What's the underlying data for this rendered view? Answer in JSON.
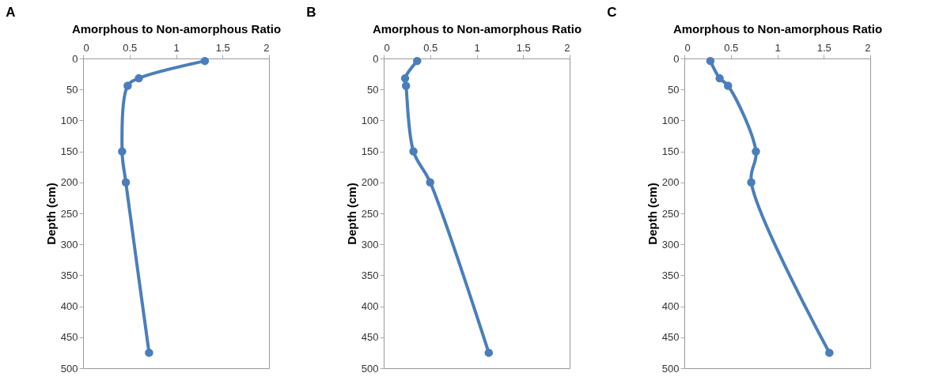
{
  "chart_data": [
    {
      "type": "line",
      "title": "A",
      "xlabel": "Amorphous to Non-amorphous Ratio",
      "ylabel": "Depth (cm)",
      "xlim": [
        0,
        2
      ],
      "xticks": [
        0,
        0.5,
        1,
        1.5,
        2
      ],
      "ylim": [
        500,
        0
      ],
      "yticks": [
        0,
        50,
        100,
        150,
        200,
        250,
        300,
        350,
        400,
        450,
        500
      ],
      "marker": "circle",
      "line_style": "solid",
      "series": [
        {
          "color": "#4a7ebb",
          "x": [
            1.31,
            0.6,
            0.48,
            0.42,
            0.46,
            0.71
          ],
          "values": [
            4,
            32,
            44,
            150,
            200,
            475
          ]
        }
      ]
    },
    {
      "type": "line",
      "title": "B",
      "xlabel": "Amorphous to Non-amorphous Ratio",
      "ylabel": "Depth (cm)",
      "xlim": [
        0,
        2
      ],
      "xticks": [
        0,
        0.5,
        1,
        1.5,
        2
      ],
      "ylim": [
        500,
        0
      ],
      "yticks": [
        0,
        50,
        100,
        150,
        200,
        250,
        300,
        350,
        400,
        450,
        500
      ],
      "marker": "circle",
      "line_style": "solid",
      "series": [
        {
          "color": "#4a7ebb",
          "x": [
            0.36,
            0.23,
            0.24,
            0.32,
            0.5,
            1.13
          ],
          "values": [
            4,
            32,
            44,
            150,
            200,
            475
          ]
        }
      ]
    },
    {
      "type": "line",
      "title": "C",
      "xlabel": "Amorphous to Non-amorphous Ratio",
      "ylabel": "Depth (cm)",
      "xlim": [
        0,
        2
      ],
      "xticks": [
        0,
        0.5,
        1,
        1.5,
        2
      ],
      "ylim": [
        500,
        0
      ],
      "yticks": [
        0,
        50,
        100,
        150,
        200,
        250,
        300,
        350,
        400,
        450,
        500
      ],
      "marker": "circle",
      "line_style": "solid",
      "series": [
        {
          "color": "#4a7ebb",
          "x": [
            0.28,
            0.38,
            0.47,
            0.77,
            0.72,
            1.56
          ],
          "values": [
            4,
            32,
            44,
            150,
            200,
            475
          ]
        }
      ]
    }
  ]
}
